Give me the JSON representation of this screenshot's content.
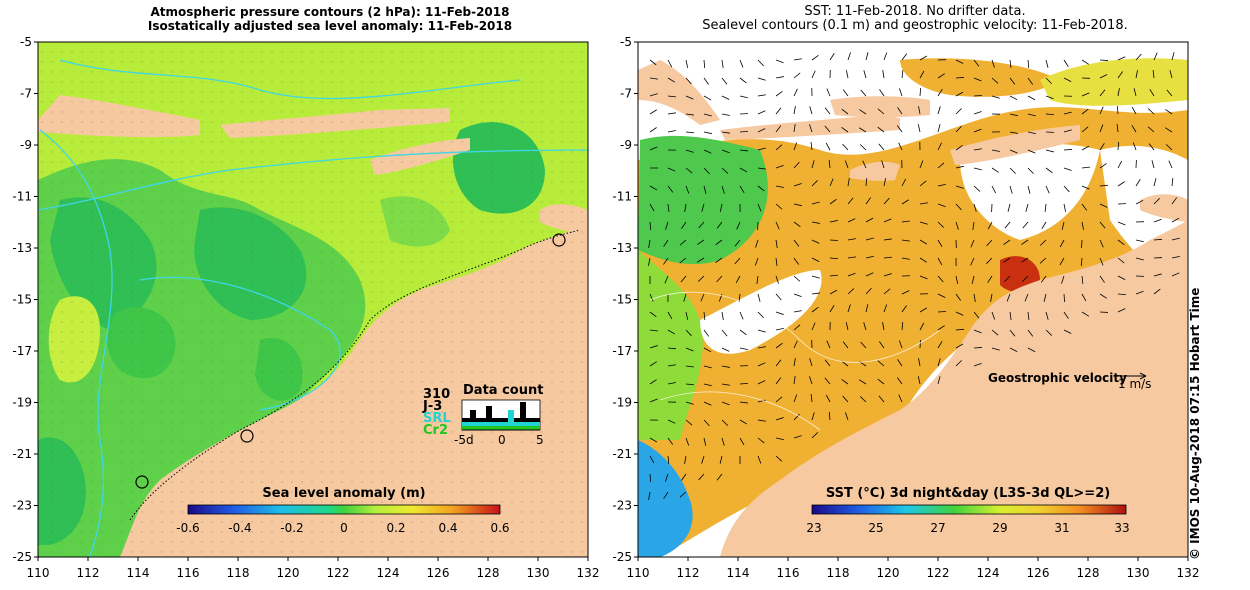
{
  "left_panel": {
    "title_line1": "Atmospheric pressure contours (2 hPa): 11-Feb-2018",
    "title_line2": "Isostatically adjusted sea level anomaly: 11-Feb-2018",
    "colorbar": {
      "title": "Sea level anomaly (m)",
      "ticks": [
        "-0.6",
        "-0.4",
        "-0.2",
        "0",
        "0.2",
        "0.4",
        "0.6"
      ]
    },
    "data_count": {
      "title": "Data count",
      "missions": [
        {
          "label": "310",
          "color": "#000000"
        },
        {
          "label": "J-3",
          "color": "#000000"
        },
        {
          "label": "SRL",
          "color": "#22d3d3"
        },
        {
          "label": "Cr2",
          "color": "#22c522"
        }
      ],
      "axis_ticks": [
        "-5d",
        "0",
        "5"
      ]
    }
  },
  "right_panel": {
    "title_line1": "SST: 11-Feb-2018. No drifter data.",
    "title_line2": "Sealevel contours (0.1 m) and geostrophic velocity: 11-Feb-2018.",
    "velocity_legend": {
      "label": "Geostrophic velocity",
      "scale": "1 m/s"
    },
    "colorbar": {
      "title": "SST (°C) 3d night&day (L3S-3d QL>=2)",
      "ticks": [
        "23",
        "25",
        "27",
        "29",
        "31",
        "33"
      ]
    }
  },
  "axes": {
    "x_ticks": [
      "110",
      "112",
      "114",
      "116",
      "118",
      "120",
      "122",
      "124",
      "126",
      "128",
      "130",
      "132"
    ],
    "y_ticks": [
      "-5",
      "-7",
      "-9",
      "-11",
      "-13",
      "-15",
      "-17",
      "-19",
      "-21",
      "-23",
      "-25"
    ]
  },
  "side_label": "© IMOS 10-Aug-2018 07:15 Hobart Time",
  "colors": {
    "land": "#f7c9a0",
    "sea_green": "#4ec94e",
    "sea_yellow": "#c8f03c",
    "sst_orange": "#f0a030",
    "contour": "#3fd6e6"
  }
}
